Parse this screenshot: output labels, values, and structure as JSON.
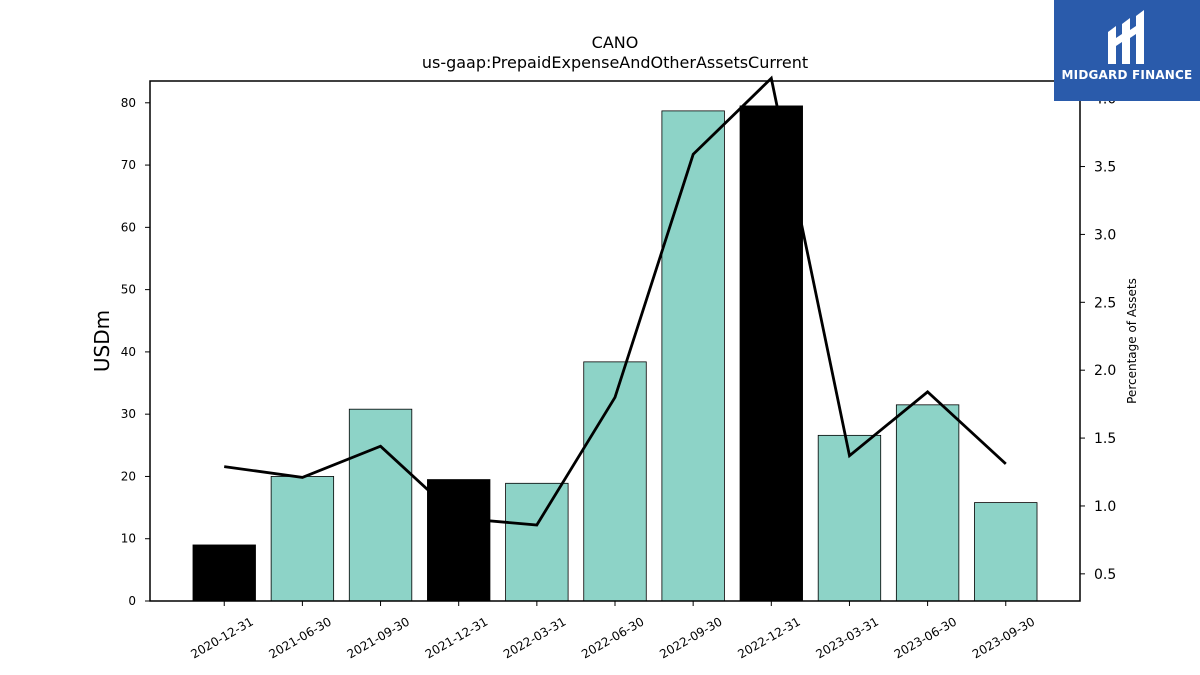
{
  "logo": {
    "text": "MIDGARD FINANCE",
    "background": "#2a5bab"
  },
  "chart_data": {
    "type": "bar",
    "title": "CANO",
    "subtitle": "us-gaap:PrepaidExpenseAndOtherAssetsCurrent",
    "ylabel": "USDm",
    "y2label": "Percentage of Assets",
    "categories": [
      "2020-12-31",
      "2021-06-30",
      "2021-09-30",
      "2021-12-31",
      "2022-03-31",
      "2022-06-30",
      "2022-09-30",
      "2022-12-31",
      "2023-03-31",
      "2023-06-30",
      "2023-09-30"
    ],
    "series": [
      {
        "name": "",
        "kind": "bar",
        "values": [
          9.0,
          20.0,
          30.8,
          19.5,
          18.9,
          38.4,
          78.7,
          79.5,
          26.6,
          31.5,
          15.8
        ],
        "highlight": [
          true,
          false,
          false,
          true,
          false,
          false,
          false,
          true,
          false,
          false,
          false
        ]
      },
      {
        "name": "",
        "kind": "line",
        "axis": "right",
        "values": [
          1.29,
          1.21,
          1.44,
          0.91,
          0.86,
          1.8,
          3.59,
          4.15,
          1.37,
          1.84,
          1.31
        ]
      }
    ],
    "ylim": [
      0,
      83.5
    ],
    "y2lim": [
      0.3,
      4.13
    ],
    "yticks": [
      0,
      10,
      20,
      30,
      40,
      50,
      60,
      70,
      80
    ],
    "y2ticks": [
      0.5,
      1.0,
      1.5,
      2.0,
      2.5,
      3.0,
      3.5,
      4.0
    ],
    "colors": {
      "bar": "#8dd3c7",
      "bar_highlight": "#000000",
      "line": "#000000"
    },
    "grid": false,
    "legend": "none"
  }
}
